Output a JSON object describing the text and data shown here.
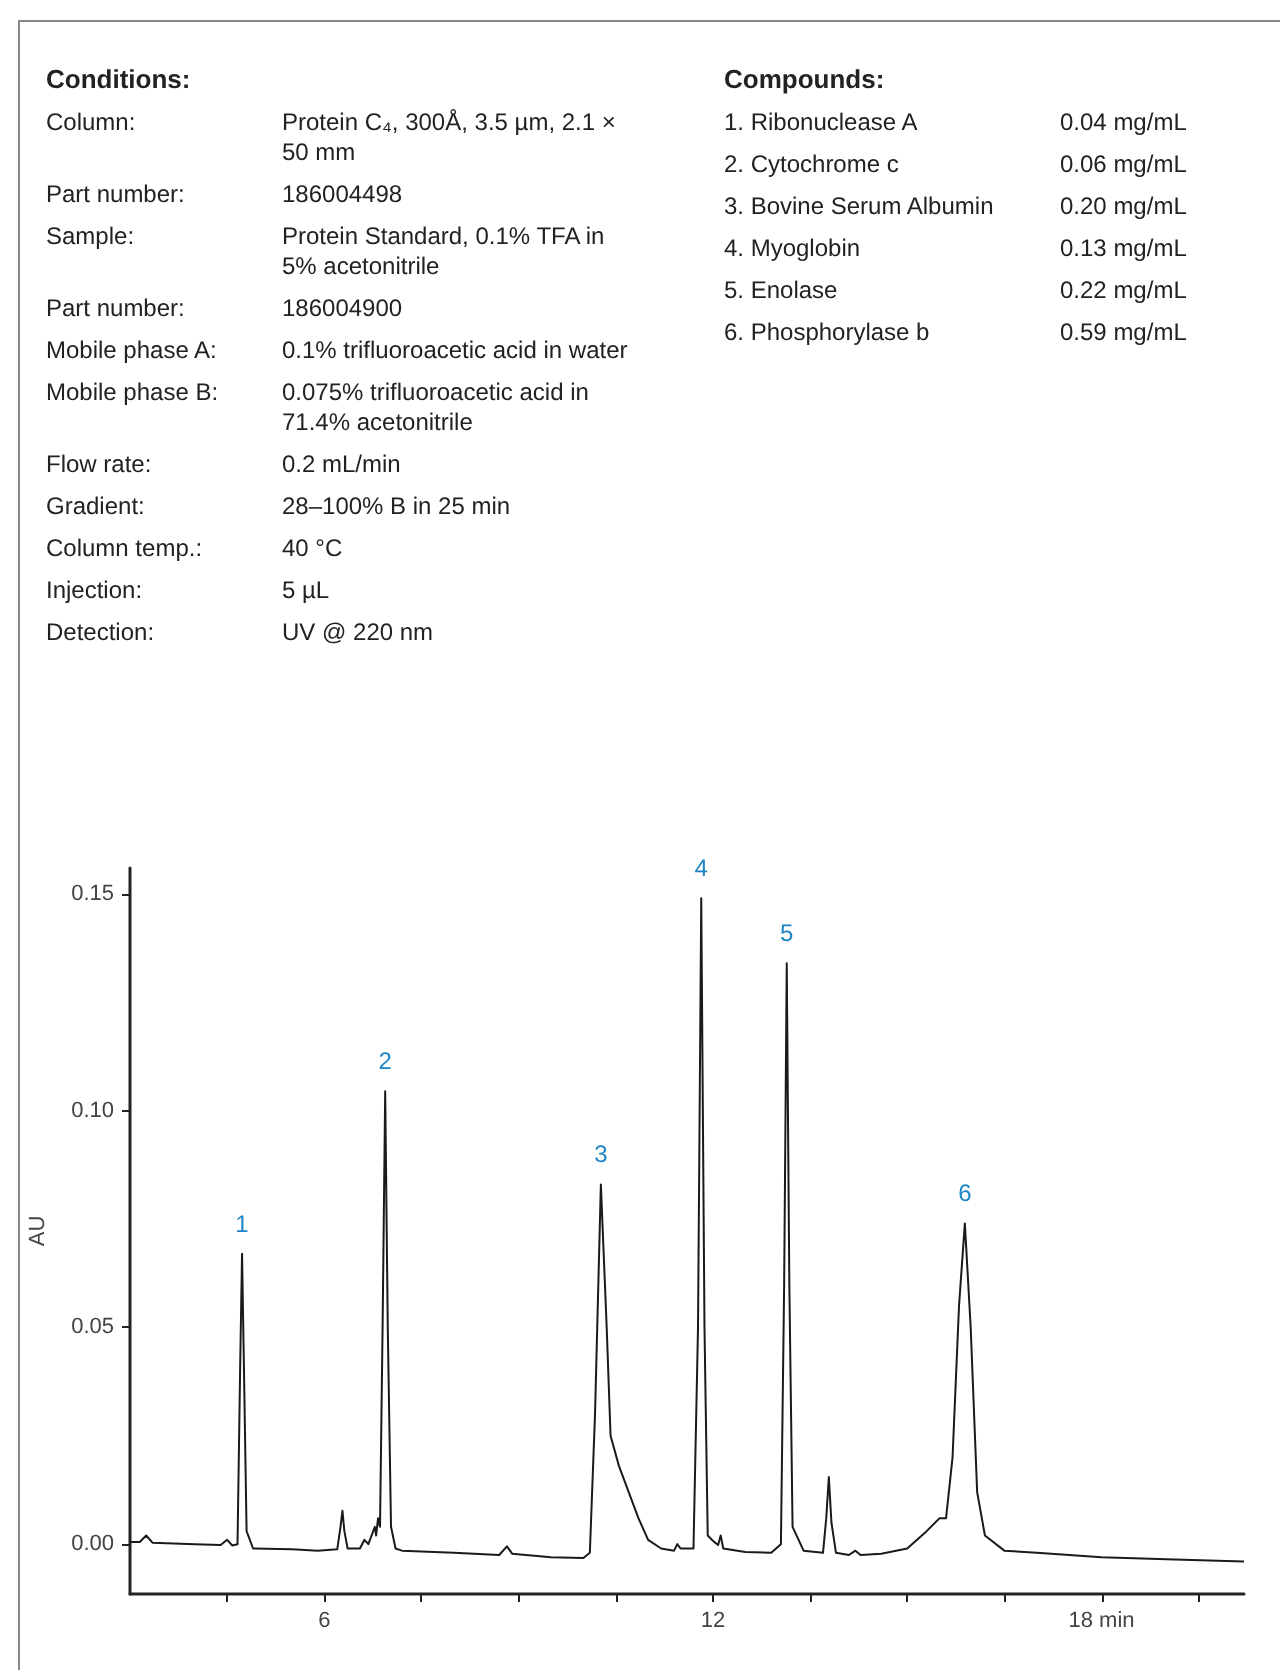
{
  "chart_data": [
    {
      "type": "other",
      "title": "Conditions:",
      "annotations": [
        "Column:",
        "Protein C₄, 300Å, 3.5 µm, 2.1 × 50 mm",
        "Part number:",
        "186004498",
        "Sample:",
        "Protein Standard, 0.1% TFA in 5% acetonitrile",
        "Part number:",
        "186004900",
        "Mobile phase A:",
        "0.1% trifluoroacetic acid in water",
        "Mobile phase B:",
        "0.075% trifluoroacetic acid in 71.4% acetonitrile",
        "Flow rate:",
        "0.2 mL/min",
        "Gradient:",
        "28–100% B in 25 min",
        "Column temp.:",
        "40 °C",
        "Injection:",
        "5 µL",
        "Detection:",
        "UV @ 220 nm"
      ]
    },
    {
      "type": "other",
      "title": "Compounds:",
      "annotations": [
        "1. Ribonuclease A",
        "0.04 mg/mL",
        "2. Cytochrome c",
        "0.06 mg/mL",
        "3. Bovine Serum Albumin",
        "0.20 mg/mL",
        "4. Myoglobin",
        "0.13 mg/mL",
        "5. Enolase",
        "0.22 mg/mL",
        "6. Phosphorylase b",
        "0.59 mg/mL"
      ]
    },
    {
      "type": "line",
      "ylabel": "AU",
      "color": "#1a1a1a",
      "marker": "none",
      "line_style": "solid",
      "grid": false,
      "x": [
        3.0,
        3.15,
        3.25,
        3.35,
        4.0,
        4.4,
        4.5,
        4.58,
        4.66,
        4.7,
        4.73,
        4.76,
        4.8,
        4.9,
        5.5,
        5.9,
        6.2,
        6.25,
        6.28,
        6.31,
        6.36,
        6.55,
        6.62,
        6.68,
        6.78,
        6.8,
        6.83,
        6.86,
        6.9,
        6.94,
        6.98,
        7.03,
        7.1,
        7.2,
        8.0,
        8.7,
        8.82,
        8.9,
        9.5,
        10.0,
        10.1,
        10.18,
        10.27,
        10.36,
        10.42,
        10.55,
        10.7,
        10.85,
        11.0,
        11.2,
        11.4,
        11.45,
        11.5,
        11.7,
        11.77,
        11.82,
        11.87,
        11.92,
        12.0,
        12.08,
        12.12,
        12.16,
        12.5,
        12.9,
        13.05,
        13.1,
        13.14,
        13.18,
        13.23,
        13.4,
        13.7,
        13.75,
        13.79,
        13.83,
        13.9,
        14.1,
        14.2,
        14.28,
        14.6,
        15.0,
        15.3,
        15.5,
        15.6,
        15.7,
        15.8,
        15.89,
        15.98,
        16.08,
        16.2,
        16.5,
        17.0,
        18.0,
        19.0,
        20.2
      ],
      "values": [
        0.0005,
        0.0005,
        0.002,
        0.0003,
        0.0,
        -0.0002,
        0.001,
        -0.0003,
        0.0,
        0.04,
        0.067,
        0.04,
        0.003,
        -0.001,
        -0.0012,
        -0.0015,
        -0.0012,
        0.004,
        0.0077,
        0.003,
        -0.001,
        -0.001,
        0.001,
        0.0,
        0.004,
        0.002,
        0.006,
        0.004,
        0.05,
        0.1045,
        0.05,
        0.004,
        -0.001,
        -0.0015,
        -0.002,
        -0.0025,
        -0.0005,
        -0.0022,
        -0.003,
        -0.0032,
        -0.002,
        0.03,
        0.083,
        0.05,
        0.025,
        0.018,
        0.012,
        0.006,
        0.001,
        -0.001,
        -0.0015,
        0.0,
        -0.001,
        -0.001,
        0.05,
        0.149,
        0.05,
        0.002,
        0.0008,
        -0.0002,
        0.002,
        -0.001,
        -0.0018,
        -0.002,
        0.0,
        0.06,
        0.134,
        0.06,
        0.004,
        -0.0015,
        -0.002,
        0.006,
        0.0155,
        0.005,
        -0.002,
        -0.0025,
        -0.0015,
        -0.0025,
        -0.0022,
        -0.001,
        0.003,
        0.006,
        0.006,
        0.02,
        0.055,
        0.074,
        0.05,
        0.012,
        0.002,
        -0.0015,
        -0.002,
        -0.003,
        -0.0035,
        -0.004
      ],
      "xlim": [
        3,
        20.2
      ],
      "ylim": [
        -0.0115,
        0.156
      ],
      "xticks": [
        {
          "value": 4.5,
          "label": null
        },
        6,
        {
          "value": 7.5,
          "label": null
        },
        {
          "value": 9,
          "label": null
        },
        {
          "value": 10.5,
          "label": null
        },
        12,
        {
          "value": 13.5,
          "label": null
        },
        {
          "value": 15,
          "label": null
        },
        {
          "value": 16.5,
          "label": null
        },
        {
          "value": 18,
          "label": "18 min"
        },
        {
          "value": 19.5,
          "label": null
        }
      ],
      "yticks": [
        {
          "value": 0,
          "label": "0.00"
        },
        {
          "value": 0.05,
          "label": "0.05"
        },
        {
          "value": 0.1,
          "label": "0.10"
        },
        {
          "value": 0.15,
          "label": "0.15"
        }
      ],
      "annotations": [
        {
          "text": "1",
          "x": 4.73,
          "y": 0.067
        },
        {
          "text": "2",
          "x": 6.94,
          "y": 0.1045
        },
        {
          "text": "3",
          "x": 10.27,
          "y": 0.083
        },
        {
          "text": "4",
          "x": 11.82,
          "y": 0.149
        },
        {
          "text": "5",
          "x": 13.14,
          "y": 0.134
        },
        {
          "text": "6",
          "x": 15.89,
          "y": 0.074
        }
      ]
    }
  ]
}
